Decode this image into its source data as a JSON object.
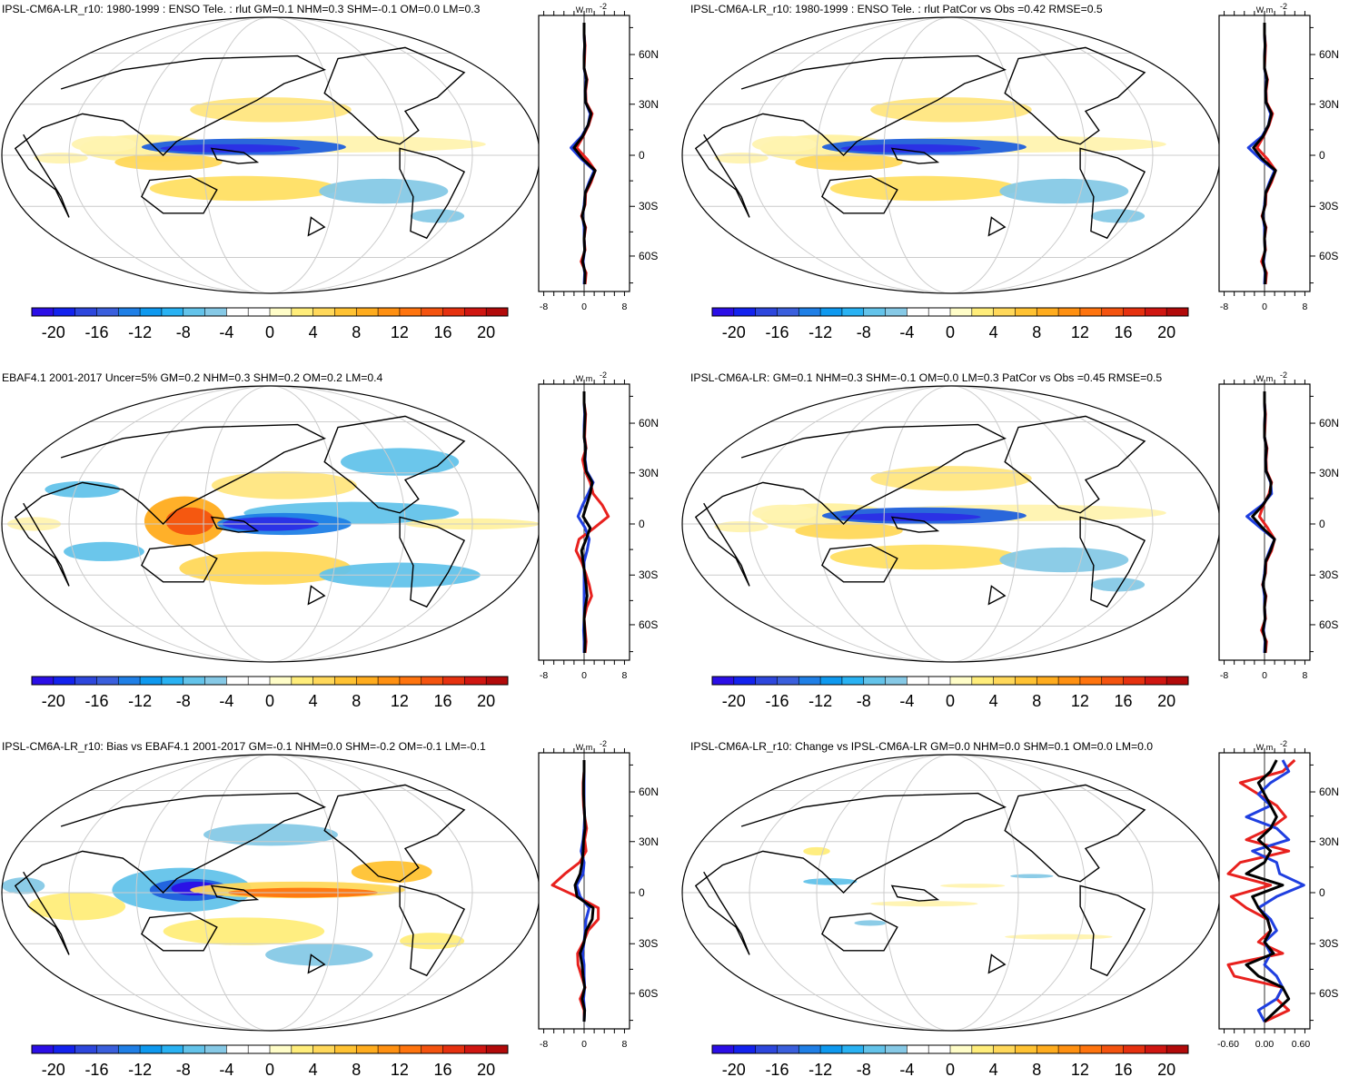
{
  "panels": [
    {
      "id": "model-r10",
      "title": "IPSL-CM6A-LR_r10: 1980-1999 : ENSO Tele. : rlut GM=0.1 NHM=0.3 SHM=-0.1 OM=0.0 LM=0.3",
      "pattern": "model",
      "zonal": {
        "ticks": [
          "-8",
          "0",
          "8"
        ],
        "range": [
          -9,
          9
        ],
        "unit": "W m",
        "lines": [
          {
            "color": "#e8211e",
            "values": [
              0,
              0,
              0.2,
              0.1,
              0,
              0.6,
              0.3,
              0.4,
              1.6,
              0.9,
              -0.2,
              -1.5,
              0.6,
              2.2,
              1.4,
              0.3,
              0.2,
              -0.5,
              0.3,
              0,
              0.2,
              -0.6,
              0.4,
              0.2
            ]
          },
          {
            "color": "#1f3fe0",
            "values": [
              0,
              0,
              0.1,
              0,
              0,
              0.4,
              0.2,
              0.3,
              1.2,
              0.8,
              -0.5,
              -2.6,
              -0.5,
              2.0,
              1.0,
              0.2,
              0,
              -0.3,
              0,
              0,
              0.1,
              -0.2,
              0.1,
              0
            ]
          },
          {
            "color": "#000000",
            "values": [
              0,
              0,
              0.1,
              0,
              0,
              0.5,
              0.2,
              0.3,
              1.4,
              0.8,
              -0.3,
              -2.0,
              -0.2,
              2.2,
              1.2,
              0.2,
              0.1,
              -0.4,
              0.2,
              0,
              0.1,
              -0.3,
              0.2,
              0.1
            ]
          }
        ]
      }
    },
    {
      "id": "model-r10-vs-obs",
      "title": "IPSL-CM6A-LR_r10: 1980-1999 : ENSO Tele. : rlut PatCor vs Obs =0.42 RMSE=0.5",
      "pattern": "model",
      "zonal": {
        "ticks": [
          "-8",
          "0",
          "8"
        ],
        "range": [
          -9,
          9
        ],
        "unit": "W m",
        "lines": [
          {
            "color": "#e8211e",
            "values": [
              0,
              0,
              0.2,
              0.1,
              0,
              0.6,
              0.3,
              0.4,
              1.6,
              0.9,
              -0.2,
              -1.5,
              0.6,
              2.2,
              1.4,
              0.3,
              0.2,
              -0.5,
              0.3,
              0,
              0.2,
              -0.6,
              0.4,
              0.2
            ]
          },
          {
            "color": "#1f3fe0",
            "values": [
              0,
              0,
              0.1,
              0,
              0,
              0.4,
              0.2,
              0.3,
              1.2,
              0.8,
              -0.5,
              -3.2,
              -0.8,
              2.0,
              1.0,
              0.2,
              0,
              -0.3,
              0,
              0,
              0.1,
              -0.2,
              0.1,
              0
            ]
          },
          {
            "color": "#000000",
            "values": [
              0,
              0,
              0.1,
              0,
              0,
              0.5,
              0.2,
              0.3,
              1.4,
              0.8,
              -0.3,
              -2.2,
              -0.4,
              2.2,
              1.2,
              0.2,
              0.1,
              -0.4,
              0.2,
              0,
              0.1,
              -0.3,
              0.2,
              0.1
            ]
          }
        ]
      }
    },
    {
      "id": "obs-ebaf",
      "title": "EBAF4.1 2001-2017 Uncer=5% GM=0.2 NHM=0.3 SHM=0.2 OM=0.2 LM=0.4",
      "pattern": "obs",
      "zonal": {
        "ticks": [
          "-8",
          "0",
          "8"
        ],
        "range": [
          -9,
          9
        ],
        "unit": "W m",
        "lines": [
          {
            "color": "#e8211e",
            "values": [
              0,
              0,
              0.3,
              0.2,
              0.1,
              0.4,
              -0.3,
              0.2,
              1.2,
              1.8,
              3.6,
              4.8,
              2.0,
              -1.0,
              -1.6,
              -0.5,
              0.3,
              1.0,
              1.5,
              0.5,
              0,
              0.2,
              0.4,
              0.2
            ]
          },
          {
            "color": "#1f3fe0",
            "values": [
              0,
              0,
              0.1,
              0,
              0,
              0.3,
              0.2,
              0.5,
              1.8,
              0.8,
              -0.3,
              -1.2,
              0.2,
              1.0,
              0.6,
              0,
              0,
              0,
              0,
              0,
              0,
              -0.1,
              0,
              0
            ]
          },
          {
            "color": "#000000",
            "values": [
              0,
              0,
              0.2,
              0.1,
              0,
              0.3,
              0.1,
              0.4,
              1.6,
              1.2,
              0.5,
              -0.2,
              1.2,
              0.4,
              -0.5,
              -0.2,
              0.1,
              0.4,
              0.6,
              0.2,
              0,
              0.1,
              0.2,
              0.1
            ]
          }
        ]
      }
    },
    {
      "id": "model-ensemble",
      "title": "IPSL-CM6A-LR: GM=0.1 NHM=0.3 SHM=-0.1 OM=0.0 LM=0.3 PatCor vs Obs =0.45 RMSE=0.5",
      "pattern": "model",
      "zonal": {
        "ticks": [
          "-8",
          "0",
          "8"
        ],
        "range": [
          -9,
          9
        ],
        "unit": "W m",
        "lines": [
          {
            "color": "#e8211e",
            "values": [
              0,
              0,
              0.2,
              0.1,
              0,
              0.5,
              0.3,
              0.4,
              1.4,
              0.9,
              -0.2,
              -1.0,
              0.6,
              2.0,
              1.4,
              0.3,
              0.2,
              -0.4,
              0.3,
              0,
              0.2,
              -0.6,
              0.4,
              0.2
            ]
          },
          {
            "color": "#1f3fe0",
            "values": [
              0,
              0,
              0.1,
              0,
              0,
              0.4,
              0.2,
              0.3,
              1.2,
              1.4,
              -0.5,
              -3.5,
              -0.8,
              2.0,
              1.0,
              0.2,
              0,
              -0.3,
              0,
              0,
              0.1,
              -0.2,
              0.1,
              0
            ]
          },
          {
            "color": "#000000",
            "values": [
              0,
              0,
              0.1,
              0,
              0,
              0.4,
              0.2,
              0.3,
              1.3,
              1.1,
              -0.3,
              -2.4,
              -0.4,
              2.0,
              1.2,
              0.2,
              0.1,
              -0.3,
              0.2,
              0,
              0.1,
              -0.3,
              0.2,
              0.1
            ]
          }
        ]
      }
    },
    {
      "id": "bias-vs-obs",
      "title": "IPSL-CM6A-LR_r10: Bias vs EBAF4.1 2001-2017 GM=-0.1 NHM=0.0 SHM=-0.2 OM=-0.1 LM=-0.1",
      "pattern": "bias",
      "zonal": {
        "ticks": [
          "-8",
          "0",
          "8"
        ],
        "range": [
          -9,
          9
        ],
        "unit": "W m",
        "lines": [
          {
            "color": "#e8211e",
            "values": [
              0,
              0,
              -0.2,
              -0.2,
              -0.1,
              0.1,
              0.5,
              0.1,
              0.4,
              -0.9,
              -3.8,
              -6.3,
              -1.4,
              2.8,
              2.8,
              0.8,
              -0.1,
              -1.3,
              -1.2,
              -0.5,
              0.2,
              -0.8,
              0,
              0
            ]
          },
          {
            "color": "#1f3fe0",
            "values": [
              0,
              0,
              0,
              0,
              0,
              0.1,
              0,
              -0.2,
              -0.6,
              0,
              -0.2,
              -1.5,
              -0.8,
              1.0,
              0.4,
              0.2,
              0,
              -0.3,
              0,
              0,
              0.1,
              -0.1,
              0.1,
              0
            ]
          },
          {
            "color": "#000000",
            "values": [
              0,
              0,
              -0.1,
              -0.1,
              0,
              0.1,
              0.2,
              -0.1,
              -0.2,
              -0.4,
              -0.8,
              -1.8,
              -1.4,
              1.8,
              1.6,
              0.4,
              0,
              -0.8,
              -0.4,
              -0.2,
              0.1,
              -0.4,
              0.1,
              0
            ]
          }
        ]
      }
    },
    {
      "id": "change-vs-ensemble",
      "title": "IPSL-CM6A-LR_r10: Change vs IPSL-CM6A-LR GM=0.0 NHM=0.0 SHM=0.1 OM=0.0 LM=0.0",
      "pattern": "change",
      "zonal": {
        "ticks": [
          "-0.60",
          "0.00",
          "0.60"
        ],
        "range": [
          -0.75,
          0.75
        ],
        "unit": "W m",
        "lines": [
          {
            "color": "#e8211e",
            "values": [
              0.5,
              0.3,
              -0.4,
              -0.1,
              0.2,
              0.35,
              0.1,
              -0.3,
              0.4,
              -0.4,
              -0.6,
              0.1,
              -0.55,
              -0.3,
              0.05,
              0.1,
              -0.1,
              0.3,
              -0.6,
              -0.5,
              0.3,
              0.2,
              0.4,
              0
            ]
          },
          {
            "color": "#1f3fe0",
            "values": [
              0.3,
              0.4,
              0.1,
              -0.1,
              0.1,
              -0.3,
              0.2,
              0.4,
              -0.2,
              0.2,
              0.25,
              0.65,
              0.2,
              -0.1,
              0.1,
              0.2,
              0,
              0.1,
              0,
              0.2,
              0.3,
              0.2,
              -0.1,
              0
            ]
          },
          {
            "color": "#000000",
            "values": [
              0.2,
              0.1,
              -0.1,
              0,
              0.1,
              0.2,
              0.1,
              -0.1,
              0.1,
              0,
              -0.3,
              0.3,
              -0.2,
              -0.1,
              0.05,
              0.1,
              0,
              0.15,
              -0.3,
              -0.1,
              0.3,
              0.4,
              0.2,
              0
            ]
          }
        ]
      }
    }
  ],
  "zonal_lat_labels": [
    "60N",
    "30N",
    "0",
    "30S",
    "60S"
  ],
  "colorbar": {
    "labels": [
      "-20",
      "-16",
      "-12",
      "-8",
      "-4",
      "0",
      "4",
      "8",
      "12",
      "16",
      "20"
    ],
    "colors": [
      "#2b0ee6",
      "#1322ee",
      "#2d47dd",
      "#3a5fdd",
      "#1f7fe6",
      "#0e99ef",
      "#29b2f3",
      "#63c3ea",
      "#86c9e6",
      "#ffffff",
      "#ffffff",
      "#fffdc8",
      "#ffed7a",
      "#ffd85a",
      "#ffc232",
      "#ffac1e",
      "#ff9011",
      "#ff740e",
      "#f4530f",
      "#e6310f",
      "#d01611",
      "#b20a0a"
    ]
  }
}
